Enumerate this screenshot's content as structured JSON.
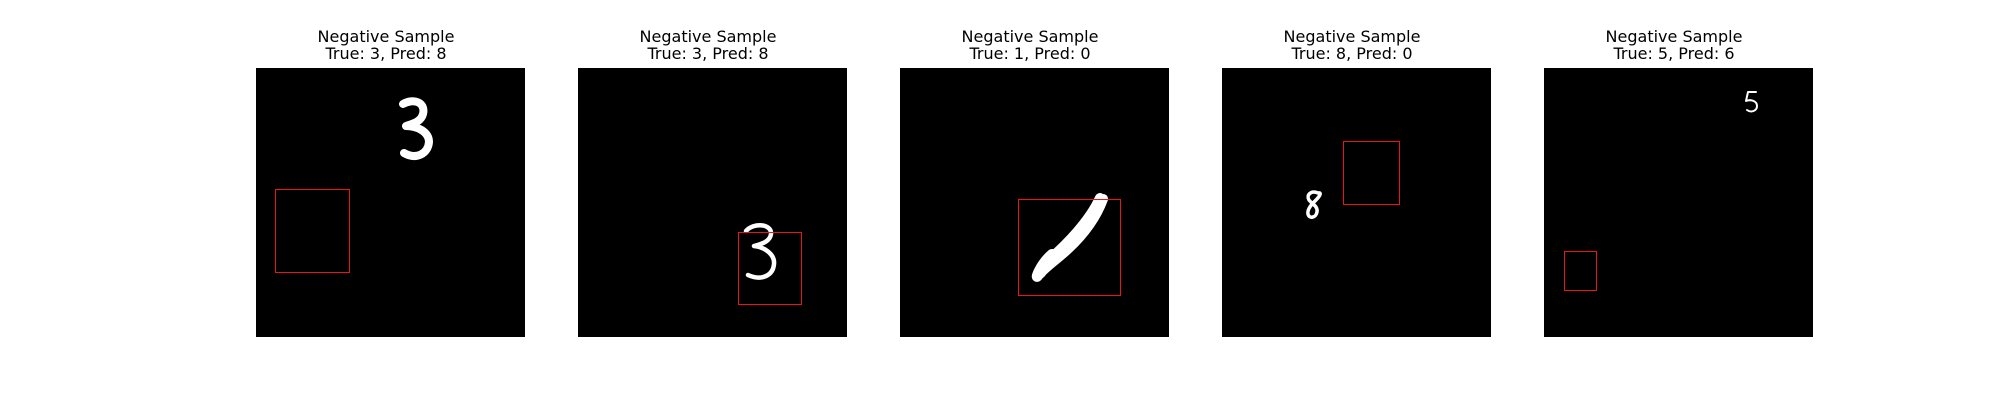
{
  "figure": {
    "samples": [
      {
        "label": "Negative Sample",
        "true_pred": "True: 3, Pred: 8",
        "digit": "3"
      },
      {
        "label": "Negative Sample",
        "true_pred": "True: 3, Pred: 8",
        "digit": "3"
      },
      {
        "label": "Negative Sample",
        "true_pred": "True: 1, Pred: 0",
        "digit": "1"
      },
      {
        "label": "Negative Sample",
        "true_pred": "True: 8, Pred: 0",
        "digit": "8"
      },
      {
        "label": "Negative Sample",
        "true_pred": "True: 5, Pred: 6",
        "digit": "5"
      }
    ],
    "colors": {
      "background": "#ffffff",
      "image_background": "#000000",
      "digit_stroke": "#ffffff",
      "box_stroke": "#e8161b"
    }
  }
}
